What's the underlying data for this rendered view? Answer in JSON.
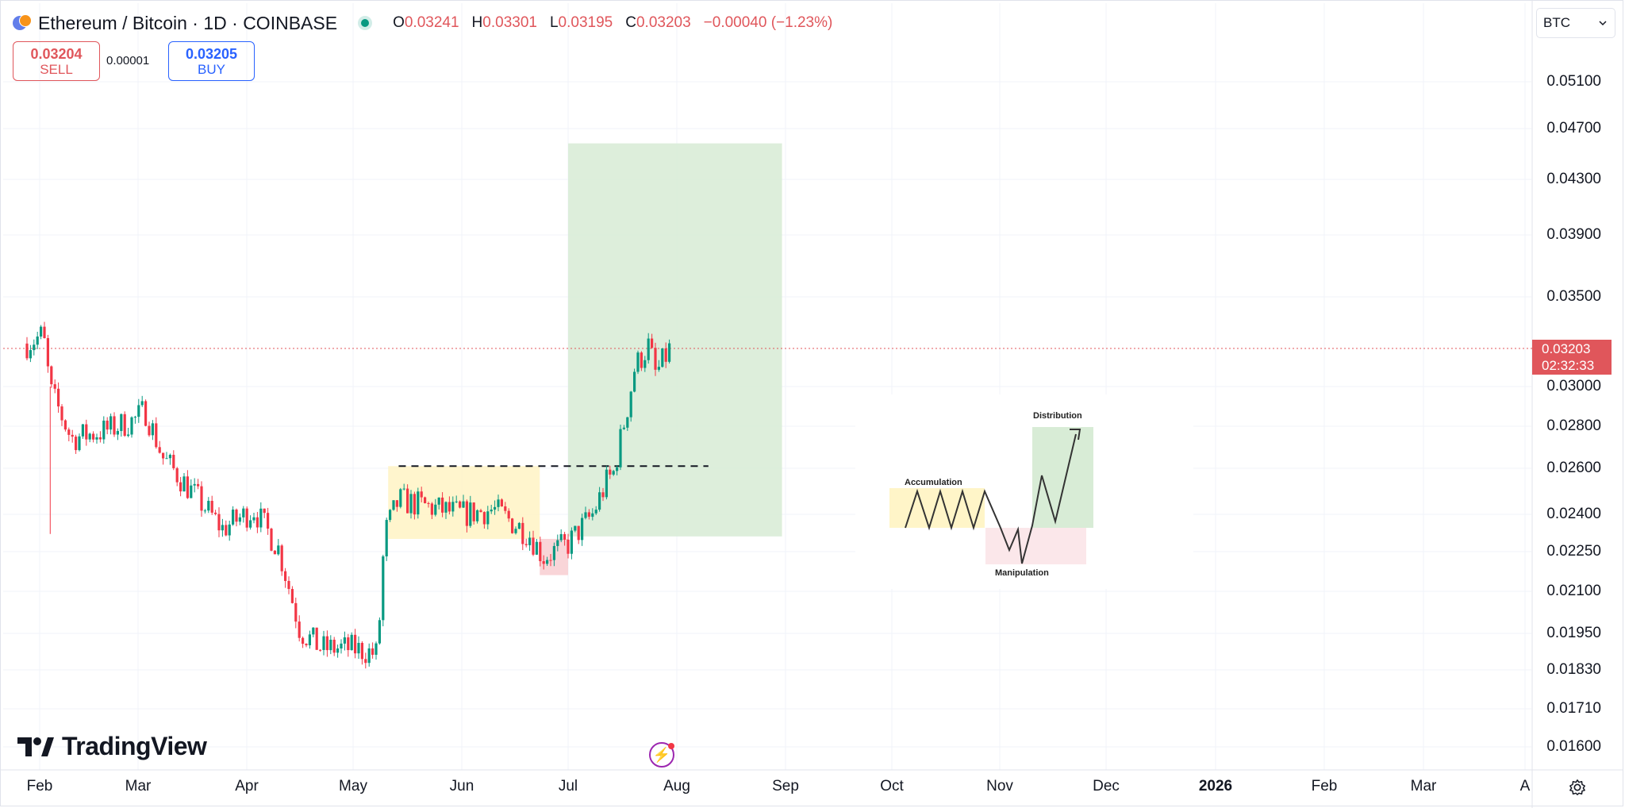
{
  "header": {
    "title": "Ethereum / Bitcoin · 1D · COINBASE",
    "ohlc": [
      {
        "k": "O",
        "v": "0.03241"
      },
      {
        "k": "H",
        "v": "0.03301"
      },
      {
        "k": "L",
        "v": "0.03195"
      },
      {
        "k": "C",
        "v": "0.03203"
      }
    ],
    "change": "−0.00040 (−1.23%)"
  },
  "trade": {
    "sell_price": "0.03204",
    "sell_label": "SELL",
    "spread": "0.00001",
    "buy_price": "0.03205",
    "buy_label": "BUY"
  },
  "currency_select": "BTC",
  "price_axis": [
    "0.05100",
    "0.04700",
    "0.04300",
    "0.03900",
    "0.03500",
    "0.03000",
    "0.02800",
    "0.02600",
    "0.02400",
    "0.02250",
    "0.02100",
    "0.01950",
    "0.01830",
    "0.01710",
    "0.01600"
  ],
  "time_axis": [
    "Feb",
    "Mar",
    "Apr",
    "May",
    "Jun",
    "Jul",
    "Aug",
    "Sep",
    "Oct",
    "Nov",
    "Dec",
    "2026",
    "Feb",
    "Mar",
    "A"
  ],
  "last_price": {
    "price": "0.03203",
    "countdown": "02:32:33"
  },
  "branding": "TradingView",
  "inset": {
    "accumulation": "Accumulation",
    "manipulation": "Manipulation",
    "distribution": "Distribution"
  },
  "colors": {
    "up": "#089981",
    "down": "#f23645",
    "last_price": "#e0565b",
    "accent": "#2962ff"
  },
  "chart_data": {
    "type": "candlestick",
    "symbol": "Ethereum / Bitcoin",
    "interval": "1D",
    "ylim": [
      0.016,
      0.053
    ],
    "x_range": [
      "Jan 2025",
      "Apr 2026"
    ],
    "grid": true,
    "close_path": [
      {
        "date": "Jan 28",
        "close": 0.0323
      },
      {
        "date": "Feb 2",
        "close": 0.0328
      },
      {
        "date": "Feb 4",
        "close": 0.0298
      },
      {
        "date": "Feb 10",
        "close": 0.0274
      },
      {
        "date": "Feb 20",
        "close": 0.0278
      },
      {
        "date": "Feb 28",
        "close": 0.0283
      },
      {
        "date": "Mar 3",
        "close": 0.0288
      },
      {
        "date": "Mar 8",
        "close": 0.0265
      },
      {
        "date": "Mar 15",
        "close": 0.0252
      },
      {
        "date": "Mar 25",
        "close": 0.0234
      },
      {
        "date": "Apr 3",
        "close": 0.0242
      },
      {
        "date": "Apr 10",
        "close": 0.0226
      },
      {
        "date": "Apr 16",
        "close": 0.0196
      },
      {
        "date": "Apr 22",
        "close": 0.019
      },
      {
        "date": "May 1",
        "close": 0.019
      },
      {
        "date": "May 8",
        "close": 0.0188
      },
      {
        "date": "May 10",
        "close": 0.0232
      },
      {
        "date": "May 14",
        "close": 0.0246
      },
      {
        "date": "Jun 1",
        "close": 0.024
      },
      {
        "date": "Jun 10",
        "close": 0.0242
      },
      {
        "date": "Jun 20",
        "close": 0.0232
      },
      {
        "date": "Jun 24",
        "close": 0.0223
      },
      {
        "date": "Jul 1",
        "close": 0.0228
      },
      {
        "date": "Jul 8",
        "close": 0.024
      },
      {
        "date": "Jul 12",
        "close": 0.0254
      },
      {
        "date": "Jul 14",
        "close": 0.0258
      },
      {
        "date": "Jul 18",
        "close": 0.029
      },
      {
        "date": "Jul 20",
        "close": 0.031
      },
      {
        "date": "Jul 24",
        "close": 0.0322
      },
      {
        "date": "Jul 26",
        "close": 0.0306
      },
      {
        "date": "Jul 30",
        "close": 0.032
      }
    ],
    "annotations": {
      "accumulation_box": {
        "from": "May 11",
        "to": "Jun 23",
        "low": 0.023,
        "high": 0.0261,
        "color": "#fff3c4"
      },
      "manipulation_box": {
        "from": "Jun 23",
        "to": "Jul 1",
        "low": 0.0216,
        "high": 0.023,
        "color": "#f8d0d4"
      },
      "distribution_target_box": {
        "from": "Jul 1",
        "to": "Aug 31",
        "low": 0.0231,
        "high": 0.0458,
        "color": "#d9ecd7"
      },
      "resistance_line": {
        "from": "May 14",
        "to": "Aug 10",
        "price": 0.0261,
        "style": "dashed"
      },
      "last_price_line": {
        "price": 0.03203,
        "style": "dotted",
        "color": "#e0565b"
      }
    }
  }
}
